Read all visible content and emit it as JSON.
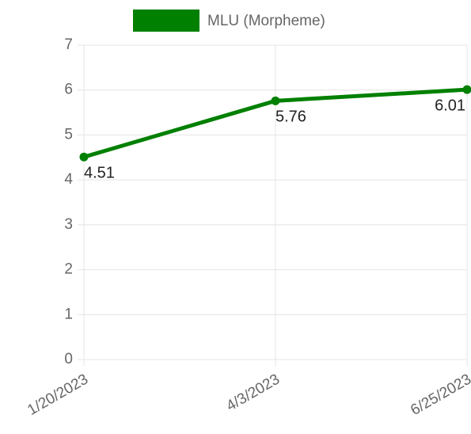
{
  "chart_data": {
    "type": "line",
    "categories": [
      "1/20/2023",
      "4/3/2023",
      "6/25/2023"
    ],
    "series": [
      {
        "name": "MLU (Morpheme)",
        "color": "#008000",
        "values": [
          4.51,
          5.76,
          6.01
        ]
      }
    ],
    "ylim": [
      0,
      7
    ],
    "yticks": [
      0,
      1,
      2,
      3,
      4,
      5,
      6,
      7
    ],
    "grid": true,
    "legend": "top"
  }
}
